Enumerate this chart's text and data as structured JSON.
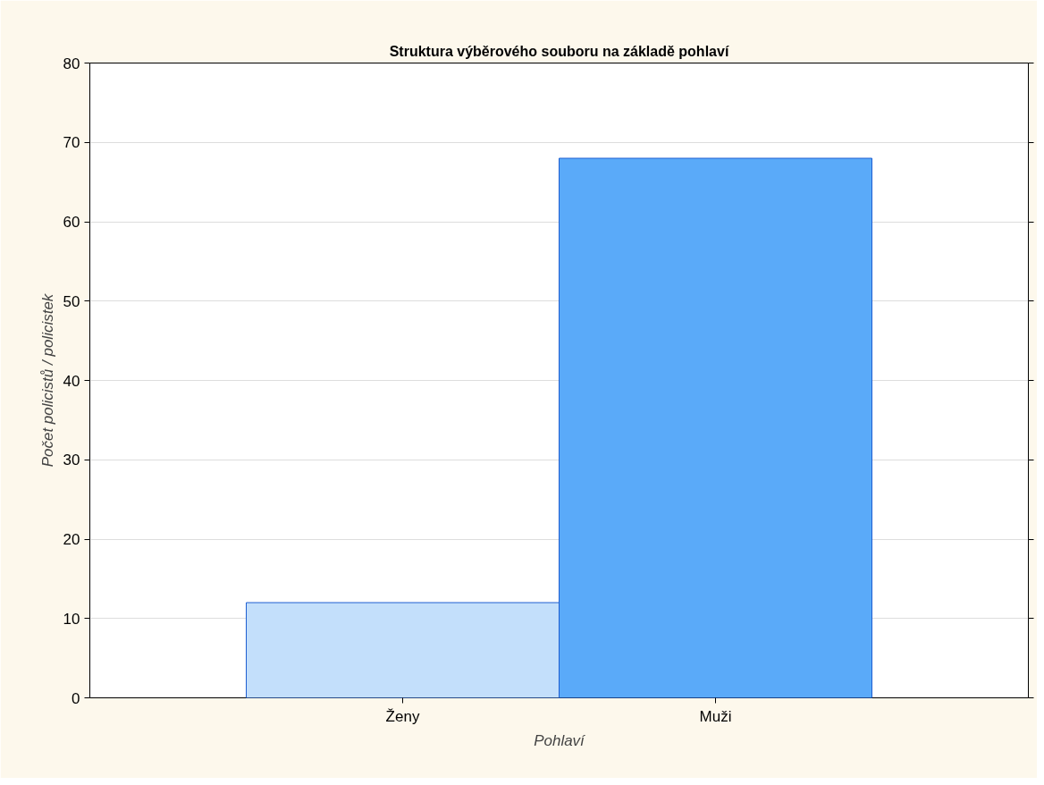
{
  "chart_data": {
    "type": "bar",
    "title": "Struktura výběrového souboru na základě pohlaví",
    "xlabel": "Pohlaví",
    "ylabel": "Počet policistů / policistek",
    "categories": [
      "Ženy",
      "Muži"
    ],
    "values": [
      12,
      68
    ],
    "colors": [
      "#c3dffb",
      "#5aaaf9"
    ],
    "ylim": [
      0,
      80
    ],
    "yticks": [
      0,
      10,
      20,
      30,
      40,
      50,
      60,
      70,
      80
    ],
    "grid": "y"
  }
}
